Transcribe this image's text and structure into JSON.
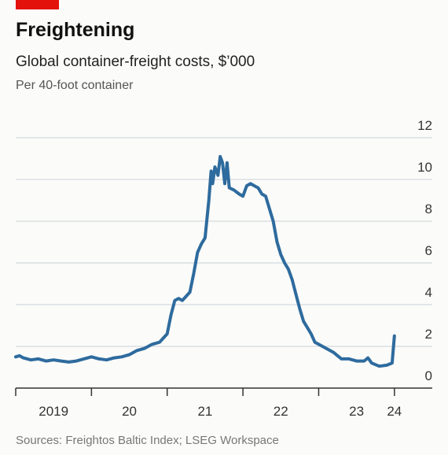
{
  "chart_data": {
    "type": "line",
    "title": "Freightening",
    "subtitle": "Global container-freight costs, $’000",
    "unit_note": "Per 40-foot container",
    "source": "Sources: Freightos Baltic Index; LSEG Workspace",
    "x": [
      2019.0,
      2019.05,
      2019.1,
      2019.2,
      2019.3,
      2019.4,
      2019.5,
      2019.6,
      2019.7,
      2019.8,
      2019.9,
      2020.0,
      2020.1,
      2020.2,
      2020.3,
      2020.4,
      2020.5,
      2020.6,
      2020.7,
      2020.8,
      2020.9,
      2020.95,
      2021.0,
      2021.05,
      2021.1,
      2021.15,
      2021.2,
      2021.25,
      2021.3,
      2021.35,
      2021.4,
      2021.45,
      2021.5,
      2021.55,
      2021.58,
      2021.6,
      2021.63,
      2021.67,
      2021.7,
      2021.73,
      2021.76,
      2021.79,
      2021.82,
      2021.88,
      2021.95,
      2022.0,
      2022.05,
      2022.1,
      2022.15,
      2022.2,
      2022.25,
      2022.3,
      2022.35,
      2022.4,
      2022.45,
      2022.5,
      2022.55,
      2022.6,
      2022.65,
      2022.7,
      2022.75,
      2022.8,
      2022.85,
      2022.9,
      2022.95,
      2023.0,
      2023.1,
      2023.2,
      2023.3,
      2023.4,
      2023.5,
      2023.6,
      2023.65,
      2023.7,
      2023.8,
      2023.9,
      2023.97,
      2024.0
    ],
    "series": [
      {
        "color": "#2e6b9e",
        "values": [
          1.5,
          1.55,
          1.45,
          1.35,
          1.4,
          1.3,
          1.35,
          1.3,
          1.25,
          1.3,
          1.4,
          1.5,
          1.4,
          1.35,
          1.45,
          1.5,
          1.6,
          1.8,
          1.9,
          2.1,
          2.2,
          2.4,
          2.6,
          3.5,
          4.2,
          4.3,
          4.2,
          4.4,
          4.6,
          5.5,
          6.5,
          6.9,
          7.2,
          9.0,
          10.4,
          9.8,
          10.6,
          10.2,
          11.1,
          10.8,
          9.8,
          10.8,
          9.6,
          9.5,
          9.3,
          9.2,
          9.7,
          9.8,
          9.7,
          9.6,
          9.3,
          9.2,
          8.6,
          8.0,
          7.0,
          6.4,
          6.0,
          5.7,
          5.2,
          4.5,
          3.8,
          3.2,
          2.9,
          2.6,
          2.2,
          2.1,
          1.9,
          1.7,
          1.4,
          1.4,
          1.3,
          1.3,
          1.45,
          1.2,
          1.05,
          1.1,
          1.2,
          2.5
        ]
      }
    ],
    "xlim": [
      2019,
      2024.5
    ],
    "xticks": [
      {
        "value": 2019.5,
        "label": "2019"
      },
      {
        "value": 2020.5,
        "label": "20"
      },
      {
        "value": 2021.5,
        "label": "21"
      },
      {
        "value": 2022.5,
        "label": "22"
      },
      {
        "value": 2023.5,
        "label": "23"
      },
      {
        "value": 2024,
        "label": "24"
      }
    ],
    "x_tick_marks": [
      2019,
      2020,
      2021,
      2022,
      2023,
      2024
    ],
    "ylim": [
      0,
      12
    ],
    "yticks": [
      0,
      2,
      4,
      6,
      8,
      10,
      12
    ],
    "grid": true
  }
}
